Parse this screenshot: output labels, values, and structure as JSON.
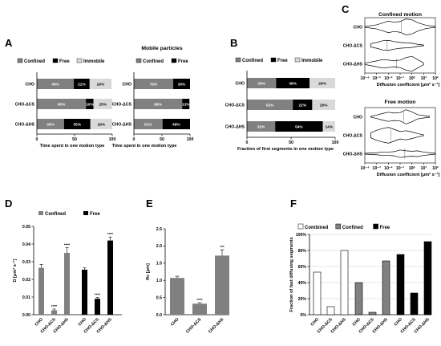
{
  "panel_labels": {
    "A": "A",
    "B": "B",
    "C": "C",
    "D": "D",
    "E": "E",
    "F": "F"
  },
  "chart_data": [
    {
      "id": "A1",
      "type": "bar",
      "orientation": "horizontal",
      "stacked": true,
      "categories": [
        "CHO",
        "CHO-ΔCS",
        "CHO-ΔHS"
      ],
      "series": [
        {
          "name": "Confined",
          "values": [
            49,
            65,
            36
          ],
          "labels": [
            "49%",
            "65%",
            "36%"
          ]
        },
        {
          "name": "Free",
          "values": [
            21,
            10,
            35
          ],
          "labels": [
            "21%",
            "10%",
            "35%"
          ]
        },
        {
          "name": "Immobile",
          "values": [
            29,
            25,
            29
          ],
          "labels": [
            "29%",
            "25%",
            "29%"
          ]
        }
      ],
      "xlabel": "Time spent in one motion type",
      "xlim": [
        0,
        100
      ],
      "xticks": [
        "0",
        "50",
        "100"
      ],
      "legend": "top",
      "colors": {
        "Confined": "#808080",
        "Free": "#000000",
        "Immobile": "#d9d9d9"
      }
    },
    {
      "id": "A2",
      "type": "bar",
      "orientation": "horizontal",
      "stacked": true,
      "title": "Mobile particles",
      "categories": [
        "CHO",
        "CHO-ΔCS",
        "CHO-ΔHS"
      ],
      "series": [
        {
          "name": "Confined",
          "values": [
            70,
            86,
            51
          ],
          "labels": [
            "70%",
            "86%",
            "51%"
          ]
        },
        {
          "name": "Free",
          "values": [
            30,
            13,
            49
          ],
          "labels": [
            "30%",
            "13%",
            "49%"
          ]
        }
      ],
      "xlabel": "Time spent in one motion type",
      "xlim": [
        0,
        100
      ],
      "xticks": [
        "0",
        "50",
        "100"
      ],
      "legend": "top",
      "colors": {
        "Confined": "#808080",
        "Free": "#000000"
      }
    },
    {
      "id": "B",
      "type": "bar",
      "orientation": "horizontal",
      "stacked": true,
      "categories": [
        "CHO",
        "CHO-ΔCS",
        "CHO-ΔHS"
      ],
      "series": [
        {
          "name": "Confined",
          "values": [
            33,
            52,
            32
          ],
          "labels": [
            "33%",
            "52%",
            "32%"
          ]
        },
        {
          "name": "Free",
          "values": [
            38,
            22,
            54
          ],
          "labels": [
            "38%",
            "22%",
            "54%"
          ]
        },
        {
          "name": "Immobile",
          "values": [
            29,
            26,
            14
          ],
          "labels": [
            "29%",
            "26%",
            "14%"
          ]
        }
      ],
      "xlabel": "Fraction of first segments in one motion type",
      "xlim": [
        0,
        100
      ],
      "xticks": [
        "0",
        "50",
        "100"
      ],
      "legend": "top",
      "colors": {
        "Confined": "#808080",
        "Free": "#000000",
        "Immobile": "#d9d9d9"
      }
    },
    {
      "id": "C1",
      "type": "violin",
      "title": "Confined motion",
      "categories": [
        "CHO",
        "CHO-ΔCS",
        "CHO-ΔHS"
      ],
      "xlabel": "Diffusion coefficient [μm² s⁻¹]",
      "xscale": "log",
      "xlim": [
        0.0001,
        100
      ],
      "xticks": [
        "10⁻⁴",
        "10⁻³",
        "10⁻²",
        "10⁻¹",
        "10⁰",
        "10¹",
        "10²"
      ],
      "distributions": [
        {
          "name": "CHO",
          "x": [
            -4,
            -3,
            -2.3,
            -2,
            -1.5,
            -1,
            -0.5,
            0,
            0.5,
            1.2,
            2
          ],
          "density": [
            0.05,
            0.25,
            0.55,
            0.7,
            0.55,
            0.65,
            0.95,
            0.85,
            0.5,
            0.2,
            0.05
          ],
          "median": -0.9
        },
        {
          "name": "CHO-ΔCS",
          "x": [
            -3.5,
            -3,
            -2.5,
            -2,
            -1.5,
            -1,
            -0.5,
            0,
            0.5,
            1
          ],
          "density": [
            0.2,
            0.35,
            0.55,
            0.6,
            0.45,
            0.35,
            0.3,
            0.25,
            0.12,
            0.04
          ],
          "median": -2.1
        },
        {
          "name": "CHO-ΔHS",
          "x": [
            -4,
            -3,
            -2.5,
            -2,
            -1.5,
            -1,
            -0.5,
            0,
            0.5,
            1
          ],
          "density": [
            0.08,
            0.35,
            0.5,
            0.45,
            0.35,
            0.45,
            0.75,
            0.9,
            0.5,
            0.1
          ],
          "median": -1.3
        }
      ]
    },
    {
      "id": "C2",
      "type": "violin",
      "title": "Free motion",
      "categories": [
        "CHO",
        "CHO-ΔCS",
        "CHO-ΔHS"
      ],
      "xlabel": "Diffusion coefficient [μm² s⁻¹]",
      "xscale": "log",
      "xlim": [
        0.0001,
        100
      ],
      "xticks": [
        "10⁻⁴",
        "10⁻³",
        "10⁻²",
        "10⁻¹",
        "10⁰",
        "10¹",
        "10²"
      ],
      "distributions": [
        {
          "name": "CHO",
          "x": [
            -3.5,
            -3,
            -2.5,
            -2,
            -1.5,
            -1,
            -0.5,
            0,
            0.5,
            1.5
          ],
          "density": [
            0.05,
            0.2,
            0.4,
            0.55,
            0.45,
            0.5,
            0.85,
            0.6,
            0.25,
            0.05
          ],
          "median": -0.7
        },
        {
          "name": "CHO-ΔCS",
          "x": [
            -3.5,
            -3,
            -2.5,
            -2,
            -1.5,
            -1,
            -0.5,
            0,
            0.5,
            1
          ],
          "density": [
            0.3,
            0.6,
            0.8,
            0.95,
            0.7,
            0.45,
            0.55,
            0.4,
            0.2,
            0.05
          ],
          "median": -1.8
        },
        {
          "name": "CHO-ΔHS",
          "x": [
            -4,
            -3,
            -2.5,
            -2,
            -1.5,
            -1,
            -0.5,
            0,
            0.5,
            1,
            2
          ],
          "density": [
            0.05,
            0.12,
            0.2,
            0.2,
            0.25,
            0.45,
            0.35,
            0.3,
            0.35,
            0.2,
            0.05
          ],
          "median": -0.6
        }
      ]
    },
    {
      "id": "D",
      "type": "bar",
      "categories": [
        "CHO",
        "CHO-ΔCS",
        "CHO-ΔHS"
      ],
      "series": [
        {
          "name": "Confined",
          "values": [
            0.0265,
            0.0025,
            0.035
          ],
          "errors": [
            0.002,
            0.0007,
            0.003
          ],
          "stars": [
            "",
            "****",
            "****"
          ]
        },
        {
          "name": "Free",
          "values": [
            0.0255,
            0.009,
            0.042
          ],
          "errors": [
            0.001,
            0.0008,
            0.002
          ],
          "stars": [
            "",
            "****",
            "****"
          ]
        }
      ],
      "ylabel": "D [μm² s⁻¹]",
      "ylim": [
        0,
        0.05
      ],
      "yticks": [
        "0.00",
        "0.01",
        "0.02",
        "0.03",
        "0.04",
        "0.05"
      ],
      "legend": "top",
      "colors": {
        "Confined": "#808080",
        "Free": "#000000"
      }
    },
    {
      "id": "E",
      "type": "bar",
      "categories": [
        "CHO",
        "CHO-ΔCS",
        "CHO-ΔHS"
      ],
      "values": [
        1.07,
        0.32,
        1.72
      ],
      "errors": [
        0.05,
        0.03,
        0.17
      ],
      "stars": [
        "",
        "****",
        "***"
      ],
      "ylabel": "Rc [μm]",
      "ylim": [
        0,
        2.5
      ],
      "yticks": [
        "0.0",
        "0.5",
        "1.0",
        "1.5",
        "2.0",
        "2.5"
      ],
      "grid": false,
      "colors": {
        "bars": "#808080"
      }
    },
    {
      "id": "F",
      "type": "bar",
      "categories": [
        "CHO",
        "CHO-ΔCS",
        "CHO-ΔHS"
      ],
      "series": [
        {
          "name": "Combined",
          "values": [
            53,
            10,
            80
          ]
        },
        {
          "name": "Confined",
          "values": [
            40,
            3,
            67
          ]
        },
        {
          "name": "Free",
          "values": [
            75,
            27,
            91
          ]
        }
      ],
      "ylabel": "Fraction of fast diffusing segments",
      "ylim": [
        0,
        100
      ],
      "yticks": [
        "0%",
        "20%",
        "40%",
        "60%",
        "80%",
        "100%"
      ],
      "grid": true,
      "legend": "top",
      "colors": {
        "Combined": "#ffffff",
        "Confined": "#808080",
        "Free": "#000000"
      }
    }
  ]
}
